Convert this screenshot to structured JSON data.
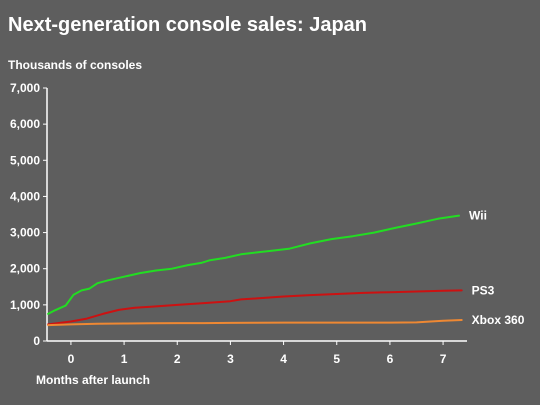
{
  "chart_data": {
    "type": "line",
    "title": "Next-generation console sales: Japan",
    "ylabel": "Thousands of consoles",
    "xlabel": "Months after launch",
    "ylim": [
      0,
      7000
    ],
    "xlim": [
      -0.45,
      7.45
    ],
    "y_ticks": [
      "0",
      "1,000",
      "2,000",
      "3,000",
      "4,000",
      "5,000",
      "6,000",
      "7,000"
    ],
    "x_ticks": [
      "0",
      "1",
      "2",
      "3",
      "4",
      "5",
      "6",
      "7"
    ],
    "grid": false,
    "legend": "direct labels at line ends",
    "series": [
      {
        "name": "Wii",
        "color": "#22dd22",
        "x": [
          -0.43,
          -0.3,
          -0.1,
          0.05,
          0.2,
          0.35,
          0.5,
          0.7,
          1.0,
          1.3,
          1.6,
          1.9,
          2.2,
          2.45,
          2.6,
          2.9,
          3.2,
          3.5,
          3.8,
          4.1,
          4.5,
          4.9,
          5.3,
          5.7,
          6.1,
          6.5,
          6.9,
          7.3
        ],
        "values": [
          750,
          850,
          980,
          1280,
          1400,
          1450,
          1600,
          1680,
          1780,
          1880,
          1950,
          2000,
          2100,
          2160,
          2230,
          2300,
          2400,
          2450,
          2500,
          2550,
          2700,
          2820,
          2900,
          3000,
          3130,
          3250,
          3380,
          3470
        ]
      },
      {
        "name": "PS3",
        "color": "#cc1111",
        "x": [
          -0.43,
          0,
          0.3,
          0.6,
          0.9,
          1.2,
          1.5,
          2.0,
          2.5,
          3.0,
          3.2,
          3.5,
          4.0,
          4.5,
          5.0,
          5.5,
          6.0,
          6.5,
          7.0,
          7.35
        ],
        "values": [
          460,
          540,
          620,
          750,
          860,
          920,
          950,
          1000,
          1050,
          1100,
          1150,
          1180,
          1230,
          1270,
          1300,
          1330,
          1350,
          1370,
          1390,
          1400
        ]
      },
      {
        "name": "Xbox 360",
        "color": "#ee8833",
        "x": [
          -0.43,
          0,
          0.5,
          1.0,
          1.5,
          2.0,
          2.5,
          3.0,
          3.5,
          4.0,
          4.5,
          5.0,
          5.5,
          6.0,
          6.5,
          7.0,
          7.35
        ],
        "values": [
          440,
          460,
          475,
          485,
          490,
          495,
          495,
          500,
          505,
          510,
          510,
          510,
          510,
          510,
          515,
          560,
          580
        ]
      }
    ]
  }
}
